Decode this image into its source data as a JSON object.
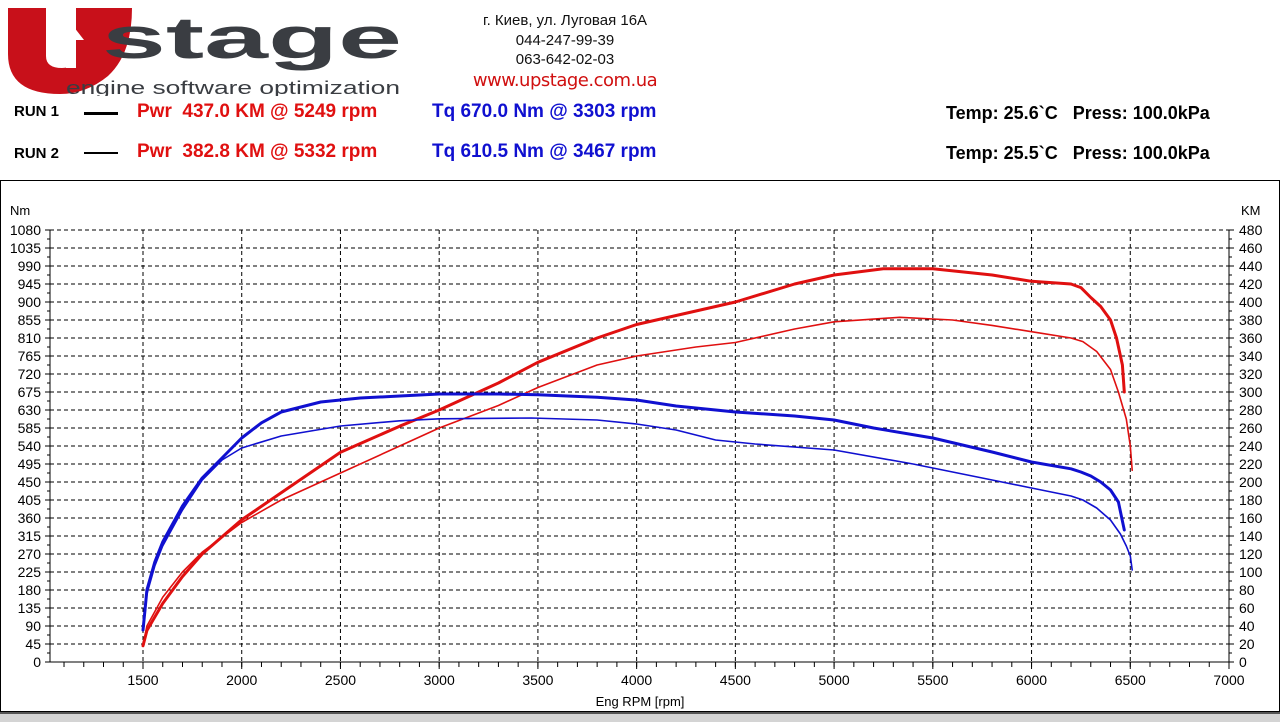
{
  "logo": {
    "letter": "U",
    "word": "stage",
    "tagline": "engine software optimization"
  },
  "contact": {
    "address": "г. Киев, ул. Луговая 16А",
    "phone1": "044-247-99-39",
    "phone2": "063-642-02-03",
    "website": "www.upstage.com.ua"
  },
  "runs": [
    {
      "label": "RUN 1",
      "power": "Pwr  437.0 KM @ 5249 rpm",
      "torque": "Tq 670.0 Nm @ 3303 rpm",
      "env": "Temp: 25.6`C   Press: 100.0kPa"
    },
    {
      "label": "RUN 2",
      "power": "Pwr  382.8 KM @ 5332 rpm",
      "torque": "Tq 610.5 Nm @ 3467 rpm",
      "env": "Temp: 25.5`C   Press: 100.0kPa"
    }
  ],
  "colors": {
    "power": "#e01010",
    "torque": "#1010d0",
    "brand": "#c8101a"
  },
  "chart_data": {
    "type": "line",
    "xlabel": "Eng RPM [rpm]",
    "ylabel_left": "Nm",
    "ylabel_right": "KM",
    "xlim": [
      1000,
      7000
    ],
    "xticks": [
      1500,
      2000,
      2500,
      3000,
      3500,
      4000,
      4500,
      5000,
      5500,
      6000,
      6500,
      7000
    ],
    "ylim_left": [
      0,
      1080
    ],
    "yticks_left": [
      0,
      45,
      90,
      135,
      180,
      225,
      270,
      315,
      360,
      405,
      450,
      495,
      540,
      585,
      630,
      675,
      720,
      765,
      810,
      855,
      900,
      945,
      990,
      1035,
      1080
    ],
    "ylim_right": [
      0,
      480
    ],
    "yticks_right": [
      0,
      20,
      40,
      60,
      80,
      100,
      120,
      140,
      160,
      180,
      200,
      220,
      240,
      260,
      280,
      300,
      320,
      340,
      360,
      380,
      400,
      420,
      440,
      460,
      480
    ],
    "grid": true,
    "series": [
      {
        "run": "RUN 1",
        "quantity": "power",
        "axis": "right",
        "color": "#e01010",
        "width": 3,
        "x": [
          1500,
          1520,
          1600,
          1700,
          1800,
          2000,
          2200,
          2500,
          2800,
          3000,
          3300,
          3500,
          3800,
          4000,
          4300,
          4500,
          4800,
          5000,
          5249,
          5500,
          5800,
          6000,
          6200,
          6250,
          6300,
          6350,
          6400,
          6430,
          6460,
          6470
        ],
        "y": [
          18,
          35,
          65,
          95,
          120,
          158,
          188,
          233,
          262,
          280,
          310,
          333,
          360,
          375,
          390,
          400,
          420,
          430,
          437,
          437,
          430,
          423,
          420,
          416,
          405,
          395,
          380,
          360,
          330,
          300
        ]
      },
      {
        "run": "RUN 2",
        "quantity": "power",
        "axis": "right",
        "color": "#e01010",
        "width": 1.6,
        "x": [
          1500,
          1520,
          1600,
          1700,
          1800,
          2000,
          2200,
          2500,
          2800,
          3000,
          3300,
          3500,
          3800,
          4000,
          4300,
          4500,
          4800,
          5000,
          5332,
          5600,
          5800,
          6000,
          6200,
          6260,
          6330,
          6400,
          6440,
          6480,
          6500,
          6510
        ],
        "y": [
          18,
          40,
          72,
          100,
          122,
          155,
          180,
          210,
          240,
          260,
          285,
          305,
          330,
          340,
          350,
          355,
          370,
          378,
          383,
          380,
          374,
          367,
          360,
          356,
          345,
          325,
          300,
          270,
          240,
          213
        ]
      },
      {
        "run": "RUN 1",
        "quantity": "torque",
        "axis": "left",
        "color": "#1010d0",
        "width": 3,
        "x": [
          1500,
          1510,
          1520,
          1560,
          1600,
          1700,
          1800,
          1900,
          2000,
          2100,
          2200,
          2400,
          2600,
          2800,
          3000,
          3303,
          3500,
          3800,
          4000,
          4200,
          4500,
          4800,
          5000,
          5200,
          5500,
          5800,
          6000,
          6200,
          6250,
          6300,
          6350,
          6400,
          6440,
          6470
        ],
        "y": [
          80,
          130,
          180,
          250,
          300,
          390,
          460,
          510,
          560,
          598,
          625,
          650,
          660,
          665,
          670,
          670,
          668,
          662,
          655,
          640,
          625,
          615,
          605,
          585,
          560,
          525,
          500,
          483,
          475,
          465,
          450,
          430,
          400,
          330
        ]
      },
      {
        "run": "RUN 2",
        "quantity": "torque",
        "axis": "left",
        "color": "#1010d0",
        "width": 1.6,
        "x": [
          1500,
          1510,
          1520,
          1560,
          1600,
          1700,
          1800,
          1900,
          2000,
          2200,
          2500,
          2800,
          3000,
          3467,
          3800,
          4000,
          4200,
          4400,
          4600,
          5000,
          5400,
          5800,
          6000,
          6200,
          6260,
          6330,
          6400,
          6450,
          6480,
          6500,
          6510
        ],
        "y": [
          80,
          120,
          170,
          240,
          290,
          380,
          455,
          505,
          535,
          565,
          590,
          603,
          608,
          610,
          605,
          595,
          580,
          555,
          545,
          530,
          495,
          455,
          435,
          415,
          405,
          385,
          355,
          320,
          290,
          265,
          230
        ]
      }
    ]
  }
}
